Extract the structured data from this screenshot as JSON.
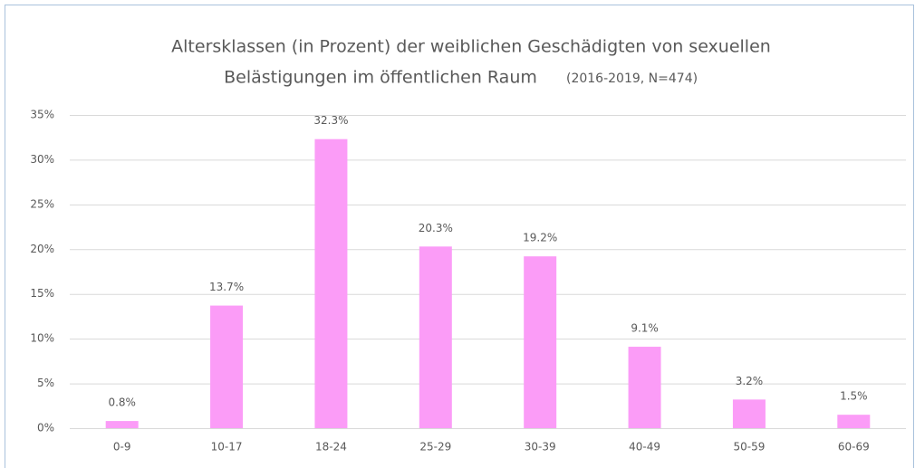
{
  "chart_data": {
    "type": "bar",
    "title": [
      "Altersklassen (in Prozent) der weiblichen Geschädigten von sexuellen",
      "Belästigungen im öffentlichen Raum"
    ],
    "subtitle": "(2016-2019, N=474)",
    "categories": [
      "0-9",
      "10-17",
      "18-24",
      "25-29",
      "30-39",
      "40-49",
      "50-59",
      "60-69"
    ],
    "values": [
      0.8,
      13.7,
      32.3,
      20.3,
      19.2,
      9.1,
      3.2,
      1.5
    ],
    "value_labels": [
      "0.8%",
      "13.7%",
      "32.3%",
      "20.3%",
      "19.2%",
      "9.1%",
      "3.2%",
      "1.5%"
    ],
    "color": "#fb9cf7",
    "ylim": [
      0,
      35
    ],
    "yticks": [
      {
        "value": 0,
        "label": "0%"
      },
      {
        "value": 5,
        "label": "5%"
      },
      {
        "value": 10,
        "label": "10%"
      },
      {
        "value": 15,
        "label": "15%"
      },
      {
        "value": 20,
        "label": "20%"
      },
      {
        "value": 25,
        "label": "25%"
      },
      {
        "value": 30,
        "label": "30%"
      },
      {
        "value": 35,
        "label": "35%"
      }
    ],
    "grid": true
  }
}
